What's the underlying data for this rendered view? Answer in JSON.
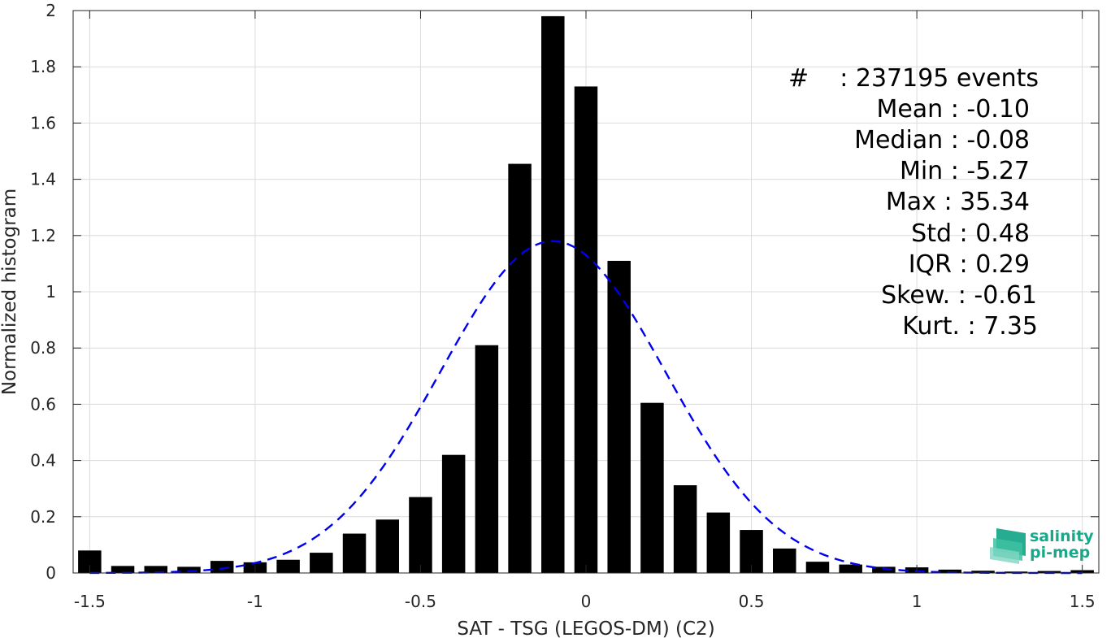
{
  "chart_data": {
    "type": "bar",
    "xlabel": "SAT - TSG (LEGOS-DM) (C2)",
    "ylabel": "Normalized histogram",
    "xlim": [
      -1.55,
      1.55
    ],
    "ylim": [
      0,
      2
    ],
    "grid": true,
    "x_ticks": [
      -1.5,
      -1,
      -0.5,
      0,
      0.5,
      1,
      1.5
    ],
    "x_tick_labels": [
      "-1.5",
      "-1",
      "-0.5",
      "0",
      "0.5",
      "1",
      "1.5"
    ],
    "y_ticks": [
      0,
      0.2,
      0.4,
      0.6,
      0.8,
      1,
      1.2,
      1.4,
      1.6,
      1.8,
      2
    ],
    "y_tick_labels": [
      "0",
      "0.2",
      "0.4",
      "0.6",
      "0.8",
      "1",
      "1.2",
      "1.4",
      "1.6",
      "1.8",
      "2"
    ],
    "bar_color": "#000000",
    "bar_width": 0.07,
    "series": [
      {
        "x": [
          -1.5,
          -1.4,
          -1.3,
          -1.2,
          -1.1,
          -1.0,
          -0.9,
          -0.8,
          -0.7,
          -0.6,
          -0.5,
          -0.4,
          -0.3,
          -0.2,
          -0.1,
          0.0,
          0.1,
          0.2,
          0.3,
          0.4,
          0.5,
          0.6,
          0.7,
          0.8,
          0.9,
          1.0,
          1.1,
          1.2,
          1.3,
          1.4,
          1.5
        ],
        "values": [
          0.08,
          0.025,
          0.025,
          0.022,
          0.043,
          0.038,
          0.047,
          0.072,
          0.14,
          0.19,
          0.27,
          0.42,
          0.81,
          1.455,
          1.98,
          1.73,
          1.11,
          0.605,
          0.312,
          0.215,
          0.153,
          0.087,
          0.04,
          0.03,
          0.022,
          0.02,
          0.012,
          0.008,
          0.005,
          0.007,
          0.01
        ]
      }
    ],
    "fit_curve": {
      "style": "dashed",
      "color": "#0000ee",
      "mean": -0.1,
      "std": 0.34,
      "peak": 1.18,
      "x_range": [
        -1.5,
        1.5
      ]
    }
  },
  "stats": [
    {
      "key": "#",
      "value": ": 237195 events"
    },
    {
      "text": "Mean : -0.10"
    },
    {
      "text": "Median : -0.08"
    },
    {
      "text": "Min : -5.27"
    },
    {
      "text": "Max : 35.34"
    },
    {
      "text": "Std : 0.48"
    },
    {
      "text": "IQR : 0.29"
    },
    {
      "text": "Skew. : -0.61"
    },
    {
      "text": "Kurt. : 7.35"
    }
  ],
  "logo": {
    "line1": "salinity",
    "line2": "pi-mep",
    "color": "#1aa88a"
  }
}
